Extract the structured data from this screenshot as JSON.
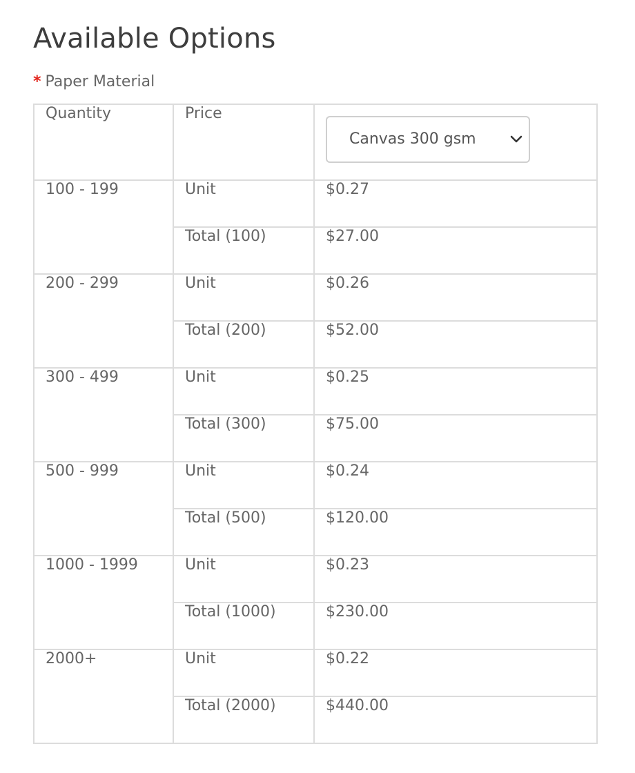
{
  "page": {
    "title": "Available Options"
  },
  "field": {
    "required_marker": "*",
    "label": "Paper Material"
  },
  "table": {
    "headers": {
      "quantity": "Quantity",
      "price": "Price"
    },
    "material_select": {
      "selected": "Canvas 300 gsm"
    },
    "tiers": [
      {
        "quantity": "100 - 199",
        "unit_label": "Unit",
        "unit_price": "$0.27",
        "total_label": "Total (100)",
        "total_price": "$27.00"
      },
      {
        "quantity": "200 - 299",
        "unit_label": "Unit",
        "unit_price": "$0.26",
        "total_label": "Total (200)",
        "total_price": "$52.00"
      },
      {
        "quantity": "300 - 499",
        "unit_label": "Unit",
        "unit_price": "$0.25",
        "total_label": "Total (300)",
        "total_price": "$75.00"
      },
      {
        "quantity": "500 - 999",
        "unit_label": "Unit",
        "unit_price": "$0.24",
        "total_label": "Total (500)",
        "total_price": "$120.00"
      },
      {
        "quantity": "1000 - 1999",
        "unit_label": "Unit",
        "unit_price": "$0.23",
        "total_label": "Total (1000)",
        "total_price": "$230.00"
      },
      {
        "quantity": "2000+",
        "unit_label": "Unit",
        "unit_price": "$0.22",
        "total_label": "Total (2000)",
        "total_price": "$440.00"
      }
    ]
  },
  "colors": {
    "required": "#e2231a",
    "border": "#dcdcdc",
    "text": "#666666"
  },
  "icons": {
    "select_arrow": "chevron-down-icon"
  }
}
